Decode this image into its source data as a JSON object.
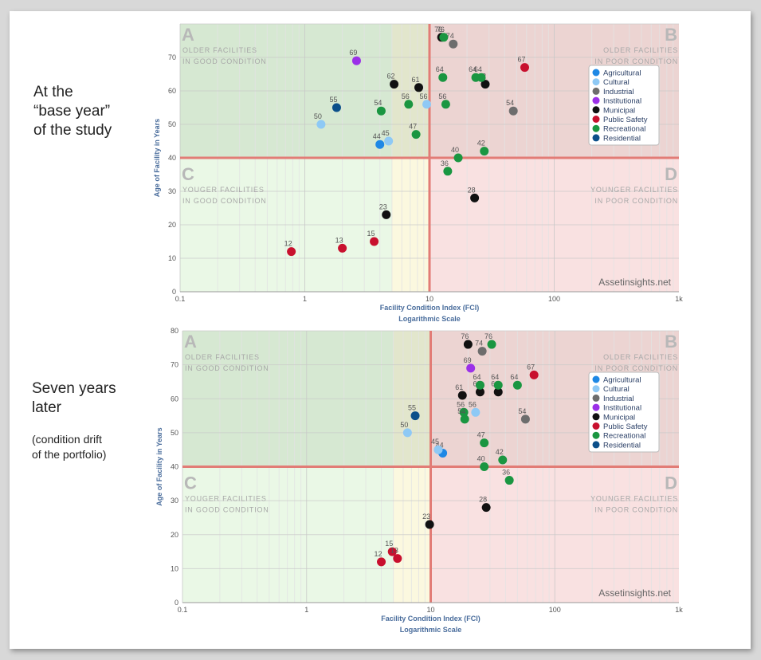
{
  "captions": {
    "top": [
      "At the",
      "“base year”",
      "of the study"
    ],
    "bottom": [
      "Seven years",
      "later"
    ],
    "bottom_note": [
      "(condition drift",
      "of the portfolio)"
    ]
  },
  "quadrants": {
    "A": {
      "letter": "A",
      "lines": [
        "OLDER FACILITIES",
        "IN GOOD CONDITION"
      ]
    },
    "B": {
      "letter": "B",
      "lines": [
        "OLDER FACILITIES",
        "IN POOR CONDITION"
      ]
    },
    "C": {
      "letter": "C",
      "lines": [
        "YOUGER FACILITIES",
        "IN GOOD CONDITION"
      ]
    },
    "D": {
      "letter": "D",
      "lines": [
        "YOUNGER FACILITIES",
        "IN POOR CONDITION"
      ]
    }
  },
  "watermark": "Assetinsights.net",
  "colors": {
    "Agricultural": "#1e88e5",
    "Cultural": "#8ec9f5",
    "Industrial": "#6d6d6d",
    "Institutional": "#9b30e8",
    "Municipal": "#111111",
    "Public Safety": "#c8102e",
    "Recreational": "#1a9641",
    "Residential": "#0b4f8a"
  },
  "chart_data": [
    {
      "type": "scatter",
      "xlabel": "Facility Condition Index (FCI)",
      "xlabel2": "Logarithmic Scale",
      "ylabel": "Age of Facility in Years",
      "xscale": "log",
      "xlim": [
        0.1,
        1000
      ],
      "ylim": [
        0,
        80
      ],
      "xticks": [
        "0.1",
        "1",
        "10",
        "100",
        "1k"
      ],
      "yticks": [
        "0",
        "10",
        "20",
        "30",
        "40",
        "50",
        "60",
        "70"
      ],
      "thresholds": {
        "x": 10,
        "y": 40
      },
      "legend_position": "right",
      "legend": [
        "Agricultural",
        "Cultural",
        "Industrial",
        "Institutional",
        "Municipal",
        "Public Safety",
        "Recreational",
        "Residential"
      ],
      "points": [
        {
          "category": "Agricultural",
          "x": 4,
          "y": 44,
          "label": "44"
        },
        {
          "category": "Cultural",
          "x": 4.7,
          "y": 45,
          "label": "45"
        },
        {
          "category": "Cultural",
          "x": 1.35,
          "y": 50,
          "label": "50"
        },
        {
          "category": "Cultural",
          "x": 9.5,
          "y": 56,
          "label": "56"
        },
        {
          "category": "Industrial",
          "x": 15.5,
          "y": 74,
          "label": "74"
        },
        {
          "category": "Industrial",
          "x": 47,
          "y": 54,
          "label": "54"
        },
        {
          "category": "Institutional",
          "x": 2.6,
          "y": 69,
          "label": "69"
        },
        {
          "category": "Municipal",
          "x": 5.2,
          "y": 62,
          "label": "62"
        },
        {
          "category": "Municipal",
          "x": 8.2,
          "y": 61,
          "label": "61"
        },
        {
          "category": "Municipal",
          "x": 28,
          "y": 62,
          "label": "62"
        },
        {
          "category": "Municipal",
          "x": 4.5,
          "y": 23,
          "label": "23"
        },
        {
          "category": "Municipal",
          "x": 23,
          "y": 28,
          "label": "28"
        },
        {
          "category": "Municipal",
          "x": 12.5,
          "y": 76,
          "label": "76"
        },
        {
          "category": "Public Safety",
          "x": 58,
          "y": 67,
          "label": "67"
        },
        {
          "category": "Public Safety",
          "x": 0.78,
          "y": 12,
          "label": "12"
        },
        {
          "category": "Public Safety",
          "x": 2,
          "y": 13,
          "label": "13"
        },
        {
          "category": "Public Safety",
          "x": 3.6,
          "y": 15,
          "label": "15"
        },
        {
          "category": "Recreational",
          "x": 13,
          "y": 76,
          "label": "76"
        },
        {
          "category": "Recreational",
          "x": 12.8,
          "y": 64,
          "label": "64"
        },
        {
          "category": "Recreational",
          "x": 23.5,
          "y": 64,
          "label": "64"
        },
        {
          "category": "Recreational",
          "x": 26,
          "y": 64,
          "label": "64"
        },
        {
          "category": "Recreational",
          "x": 4.1,
          "y": 54,
          "label": "54"
        },
        {
          "category": "Recreational",
          "x": 6.8,
          "y": 56,
          "label": "56"
        },
        {
          "category": "Recreational",
          "x": 13.5,
          "y": 56,
          "label": "56"
        },
        {
          "category": "Recreational",
          "x": 7.8,
          "y": 47,
          "label": "47"
        },
        {
          "category": "Recreational",
          "x": 17,
          "y": 40,
          "label": "40"
        },
        {
          "category": "Recreational",
          "x": 27.5,
          "y": 42,
          "label": "42"
        },
        {
          "category": "Recreational",
          "x": 14,
          "y": 36,
          "label": "36"
        },
        {
          "category": "Residential",
          "x": 1.8,
          "y": 55,
          "label": "55"
        }
      ]
    },
    {
      "type": "scatter",
      "xlabel": "Facility Condition Index (FCI)",
      "xlabel2": "Logarithmic Scale",
      "ylabel": "Age of Facility in Years",
      "xscale": "log",
      "xlim": [
        0.1,
        1000
      ],
      "ylim": [
        0,
        80
      ],
      "xticks": [
        "0.1",
        "1",
        "10",
        "100",
        "1k"
      ],
      "yticks": [
        "0",
        "10",
        "20",
        "30",
        "40",
        "50",
        "60",
        "70",
        "80"
      ],
      "thresholds": {
        "x": 10,
        "y": 40
      },
      "legend_position": "right",
      "legend": [
        "Agricultural",
        "Cultural",
        "Industrial",
        "Institutional",
        "Municipal",
        "Public Safety",
        "Recreational",
        "Residential"
      ],
      "points": [
        {
          "category": "Agricultural",
          "x": 12.5,
          "y": 44,
          "label": "44"
        },
        {
          "category": "Cultural",
          "x": 11.5,
          "y": 45,
          "label": "45"
        },
        {
          "category": "Cultural",
          "x": 6.5,
          "y": 50,
          "label": "50"
        },
        {
          "category": "Cultural",
          "x": 23,
          "y": 56,
          "label": "56"
        },
        {
          "category": "Industrial",
          "x": 26,
          "y": 74,
          "label": "74"
        },
        {
          "category": "Industrial",
          "x": 58,
          "y": 54,
          "label": "54"
        },
        {
          "category": "Institutional",
          "x": 21,
          "y": 69,
          "label": "69"
        },
        {
          "category": "Municipal",
          "x": 20,
          "y": 76,
          "label": "76"
        },
        {
          "category": "Municipal",
          "x": 18,
          "y": 61,
          "label": "61"
        },
        {
          "category": "Municipal",
          "x": 25,
          "y": 62,
          "label": "62"
        },
        {
          "category": "Municipal",
          "x": 35,
          "y": 62,
          "label": "62"
        },
        {
          "category": "Municipal",
          "x": 9.8,
          "y": 23,
          "label": "23"
        },
        {
          "category": "Municipal",
          "x": 28,
          "y": 28,
          "label": "28"
        },
        {
          "category": "Public Safety",
          "x": 68,
          "y": 67,
          "label": "67"
        },
        {
          "category": "Public Safety",
          "x": 4,
          "y": 12,
          "label": "12"
        },
        {
          "category": "Public Safety",
          "x": 4.9,
          "y": 15,
          "label": "15"
        },
        {
          "category": "Public Safety",
          "x": 5.4,
          "y": 13,
          "label": "13"
        },
        {
          "category": "Recreational",
          "x": 31,
          "y": 76,
          "label": "76"
        },
        {
          "category": "Recreational",
          "x": 25,
          "y": 64,
          "label": "64"
        },
        {
          "category": "Recreational",
          "x": 35,
          "y": 64,
          "label": "64"
        },
        {
          "category": "Recreational",
          "x": 50,
          "y": 64,
          "label": "64"
        },
        {
          "category": "Recreational",
          "x": 18.5,
          "y": 56,
          "label": "56"
        },
        {
          "category": "Recreational",
          "x": 18.8,
          "y": 54,
          "label": "54"
        },
        {
          "category": "Recreational",
          "x": 27,
          "y": 47,
          "label": "47"
        },
        {
          "category": "Recreational",
          "x": 38,
          "y": 42,
          "label": "42"
        },
        {
          "category": "Recreational",
          "x": 27,
          "y": 40,
          "label": "40"
        },
        {
          "category": "Recreational",
          "x": 43,
          "y": 36,
          "label": "36"
        },
        {
          "category": "Residential",
          "x": 7.5,
          "y": 55,
          "label": "55"
        }
      ]
    }
  ]
}
